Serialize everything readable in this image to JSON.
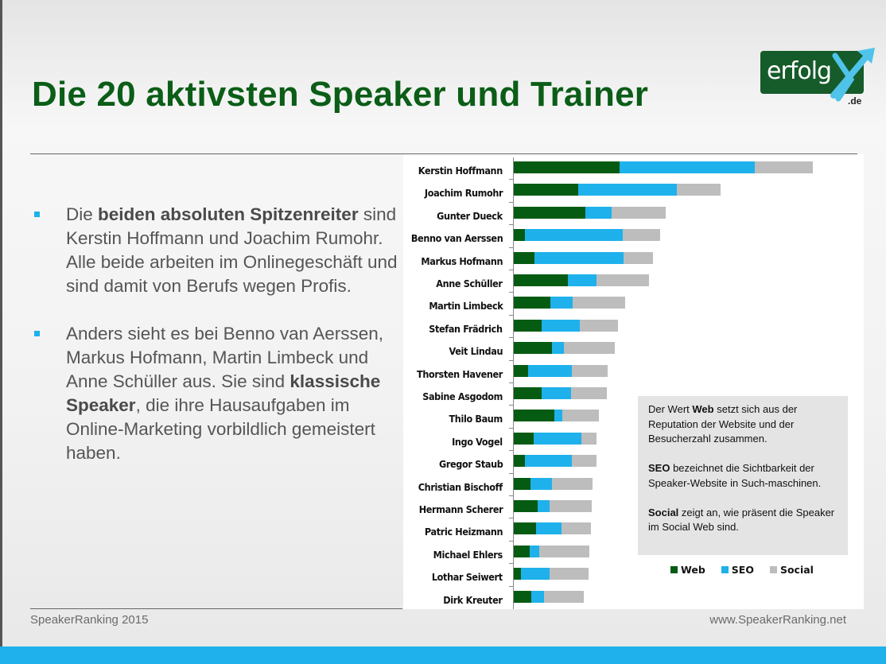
{
  "slide": {
    "title": "Die 20 aktivsten Speaker und Trainer",
    "logo": {
      "text": "erfolg",
      "accent_letter": "X",
      "tld": ".de",
      "bg_color": "#165b2a",
      "accent_color": "#4fc3ea"
    },
    "bullets": [
      {
        "parts": [
          {
            "text": "Die ",
            "bold": false
          },
          {
            "text": "beiden absoluten Spitzenreiter",
            "bold": true
          },
          {
            "text": " sind Kerstin Hoffmann und Joachim Rumohr. Alle beide arbeiten im Onlinegeschäft und sind damit von Berufs wegen Profis.",
            "bold": false
          }
        ]
      },
      {
        "parts": [
          {
            "text": "Anders sieht es bei Benno van Aerssen, Markus Hofmann, Martin Limbeck und Anne Schüller aus. Sie sind ",
            "bold": false
          },
          {
            "text": "klassische Speaker",
            "bold": true
          },
          {
            "text": ", die ihre Hausaufgaben im Online-Marketing vorbildlich gemeistert haben.",
            "bold": false
          }
        ]
      }
    ],
    "note": [
      {
        "bold": "",
        "pre": "Der Wert ",
        "term": "Web",
        "post": " setzt sich aus der Reputation der Website und der Besucherzahl zusammen."
      },
      {
        "pre": "",
        "term": "SEO",
        "post": " bezeichnet die Sichtbarkeit der Speaker-Website in Such-maschinen."
      },
      {
        "pre": "",
        "term": "Social",
        "post": " zeigt an, wie präsent die Speaker im Social Web sind."
      }
    ],
    "footer": {
      "left": "SpeakerRanking 2015",
      "right": "www.SpeakerRanking.net"
    },
    "colors": {
      "title": "#0b5d17",
      "web": "#055b12",
      "seo": "#1eb1eb",
      "social": "#bdbdbd",
      "band": "#1eb1eb"
    }
  },
  "chart_data": {
    "type": "bar",
    "orientation": "horizontal",
    "stacked": true,
    "title": "",
    "xlabel": "",
    "ylabel": "",
    "note": "No numeric axis shown; values are relative bar lengths estimated in pixel units",
    "categories": [
      "Kerstin Hoffmann",
      "Joachim Rumohr",
      "Gunter Dueck",
      "Benno van Aerssen",
      "Markus Hofmann",
      "Anne Schüller",
      "Martin Limbeck",
      "Stefan Frädrich",
      "Veit Lindau",
      "Thorsten Havener",
      "Sabine Asgodom",
      "Thilo Baum",
      "Ingo Vogel",
      "Gregor Staub",
      "Christian Bischoff",
      "Hermann Scherer",
      "Patric Heizmann",
      "Michael Ehlers",
      "Lothar Seiwert",
      "Dirk Kreuter"
    ],
    "series": [
      {
        "name": "Web",
        "color": "#055b12",
        "values": [
          133,
          81,
          90,
          14,
          26,
          68,
          46,
          35,
          48,
          18,
          35,
          51,
          25,
          14,
          21,
          30,
          28,
          20,
          9,
          22
        ]
      },
      {
        "name": "SEO",
        "color": "#1eb1eb",
        "values": [
          170,
          124,
          33,
          123,
          112,
          36,
          28,
          48,
          15,
          55,
          37,
          10,
          60,
          59,
          27,
          15,
          32,
          12,
          36,
          16
        ]
      },
      {
        "name": "Social",
        "color": "#bdbdbd",
        "values": [
          73,
          55,
          68,
          47,
          37,
          66,
          66,
          48,
          64,
          45,
          45,
          46,
          19,
          31,
          51,
          53,
          37,
          63,
          49,
          50
        ]
      }
    ],
    "legend": {
      "position": "bottom-right",
      "entries": [
        "Web",
        "SEO",
        "Social"
      ]
    },
    "grid": false
  }
}
